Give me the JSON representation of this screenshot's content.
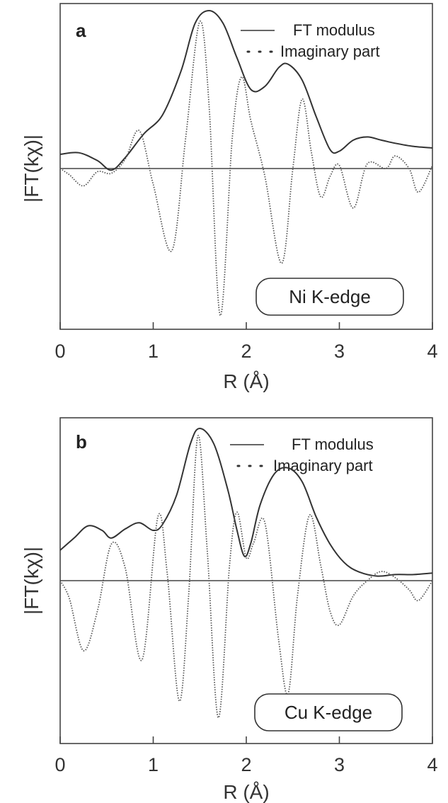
{
  "chart_data": [
    {
      "panel": "a",
      "type": "line",
      "xlim": [
        0,
        4
      ],
      "xticks": [
        "0",
        "1",
        "2",
        "3",
        "4"
      ],
      "xlabel": "R  (Å)",
      "ylabel": "|FT(kχ)|",
      "edge_label": "Ni  K-edge",
      "legend": {
        "placement": "top-right",
        "items": [
          "FT modulus",
          "Imaginary part"
        ]
      },
      "series": [
        {
          "name": "FT modulus",
          "style": "solid",
          "x": [
            0.0,
            0.2,
            0.4,
            0.55,
            0.7,
            0.9,
            1.1,
            1.3,
            1.45,
            1.6,
            1.75,
            1.9,
            2.05,
            2.2,
            2.35,
            2.45,
            2.6,
            2.75,
            2.9,
            3.0,
            3.15,
            3.3,
            3.45,
            3.6,
            3.8,
            4.0
          ],
          "y": [
            0.09,
            0.1,
            0.05,
            -0.01,
            0.07,
            0.22,
            0.34,
            0.62,
            0.92,
            1.0,
            0.92,
            0.7,
            0.5,
            0.52,
            0.64,
            0.66,
            0.56,
            0.33,
            0.12,
            0.11,
            0.18,
            0.2,
            0.18,
            0.16,
            0.14,
            0.13
          ]
        },
        {
          "name": "Imaginary part",
          "style": "dotted",
          "x": [
            0.0,
            0.1,
            0.25,
            0.4,
            0.55,
            0.7,
            0.85,
            1.0,
            1.2,
            1.35,
            1.5,
            1.6,
            1.72,
            1.85,
            1.95,
            2.05,
            2.2,
            2.38,
            2.5,
            2.6,
            2.7,
            2.8,
            2.9,
            3.0,
            3.15,
            3.3,
            3.5,
            3.6,
            3.75,
            3.85,
            4.0
          ],
          "y": [
            0.0,
            -0.04,
            -0.11,
            -0.02,
            -0.03,
            0.06,
            0.24,
            -0.1,
            -0.52,
            0.2,
            0.93,
            0.4,
            -0.93,
            0.2,
            0.58,
            0.3,
            -0.05,
            -0.6,
            0.0,
            0.44,
            0.1,
            -0.18,
            -0.05,
            0.02,
            -0.25,
            0.03,
            0.0,
            0.08,
            0.0,
            -0.15,
            0.02
          ]
        }
      ]
    },
    {
      "panel": "b",
      "type": "line",
      "xlim": [
        0,
        4
      ],
      "xticks": [
        "0",
        "1",
        "2",
        "3",
        "4"
      ],
      "xlabel": "R  (Å)",
      "ylabel": "|FT(kχ)|",
      "edge_label": "Cu  K-edge",
      "legend": {
        "placement": "top-right",
        "items": [
          "FT modulus",
          "Imaginary part"
        ]
      },
      "series": [
        {
          "name": "FT modulus",
          "style": "solid",
          "x": [
            0.0,
            0.15,
            0.3,
            0.45,
            0.55,
            0.7,
            0.85,
            1.0,
            1.1,
            1.25,
            1.4,
            1.5,
            1.65,
            1.8,
            1.9,
            1.98,
            2.05,
            2.15,
            2.3,
            2.45,
            2.6,
            2.75,
            2.9,
            3.05,
            3.2,
            3.4,
            3.6,
            3.8,
            4.0
          ],
          "y": [
            0.2,
            0.28,
            0.36,
            0.33,
            0.28,
            0.34,
            0.38,
            0.33,
            0.37,
            0.56,
            0.9,
            1.0,
            0.9,
            0.6,
            0.33,
            0.16,
            0.25,
            0.5,
            0.7,
            0.74,
            0.65,
            0.42,
            0.24,
            0.12,
            0.06,
            0.03,
            0.04,
            0.04,
            0.05
          ]
        },
        {
          "name": "Imaginary part",
          "style": "dotted",
          "x": [
            0.0,
            0.1,
            0.25,
            0.4,
            0.55,
            0.7,
            0.88,
            1.05,
            1.15,
            1.28,
            1.38,
            1.48,
            1.58,
            1.7,
            1.82,
            1.9,
            2.0,
            2.08,
            2.2,
            2.35,
            2.45,
            2.55,
            2.68,
            2.8,
            2.9,
            3.0,
            3.15,
            3.3,
            3.45,
            3.6,
            3.75,
            3.85,
            4.0
          ],
          "y": [
            0.0,
            -0.12,
            -0.46,
            -0.2,
            0.24,
            0.08,
            -0.52,
            0.42,
            0.05,
            -0.79,
            -0.1,
            0.95,
            0.2,
            -0.9,
            0.1,
            0.45,
            0.15,
            0.25,
            0.38,
            -0.4,
            -0.74,
            -0.1,
            0.43,
            0.1,
            -0.2,
            -0.29,
            -0.1,
            0.0,
            0.06,
            0.02,
            -0.06,
            -0.13,
            0.0
          ]
        }
      ]
    }
  ]
}
